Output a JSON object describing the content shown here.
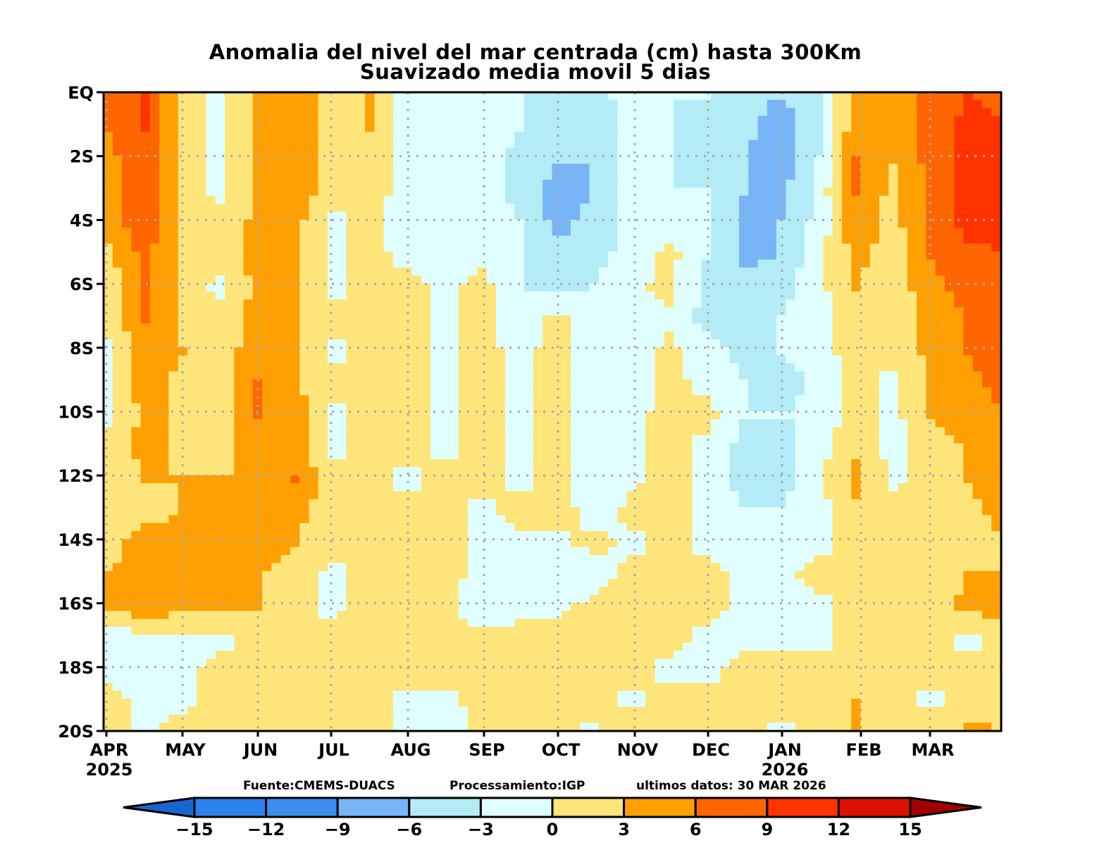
{
  "chart_data": {
    "type": "heatmap",
    "title": "Anomalia del nivel del mar centrada (cm) hasta 300Km",
    "subtitle": "Suavizado media movil 5 dias",
    "xlabel": "",
    "ylabel": "",
    "x_ticks": [
      "APR",
      "MAY",
      "JUN",
      "JUL",
      "AUG",
      "SEP",
      "OCT",
      "NOV",
      "DEC",
      "JAN",
      "FEB",
      "MAR"
    ],
    "x_year_labels": [
      {
        "tick": "APR",
        "year": "2025"
      },
      {
        "tick": "JAN",
        "year": "2026"
      }
    ],
    "y_ticks": [
      "EQ",
      "2S",
      "4S",
      "6S",
      "8S",
      "10S",
      "12S",
      "14S",
      "16S",
      "18S",
      "20S"
    ],
    "y_range": [
      0,
      -20
    ],
    "grid": true,
    "colorbar": {
      "levels": [
        -15,
        -12,
        -9,
        -6,
        -3,
        0,
        3,
        6,
        9,
        12,
        15
      ],
      "level_labels": [
        "-15",
        "-12",
        "-9",
        "-6",
        "-3",
        "0",
        "3",
        "6",
        "9",
        "12",
        "15"
      ],
      "colors": [
        "#1a66d1",
        "#2b82ea",
        "#3a8eed",
        "#77b5f6",
        "#b3ecf7",
        "#e0ffff",
        "#ffe57a",
        "#ffa000",
        "#ff6600",
        "#ff3300",
        "#dd1100",
        "#a00000"
      ],
      "placement": "bottom"
    },
    "lat_rows": [
      0,
      -1,
      -2,
      -3,
      -4,
      -5,
      -6,
      -7,
      -8,
      -9,
      -10,
      -11,
      -12,
      -13,
      -14,
      -15,
      -16,
      -17,
      -18,
      -19,
      -20
    ],
    "time_cols": [
      "Apr-1",
      "Apr-15",
      "May-1",
      "May-15",
      "Jun-1",
      "Jun-15",
      "Jul-1",
      "Jul-15",
      "Aug-1",
      "Aug-15",
      "Sep-1",
      "Sep-15",
      "Oct-1",
      "Oct-15",
      "Nov-1",
      "Nov-15",
      "Dec-1",
      "Dec-15",
      "Jan-1",
      "Jan-15",
      "Feb-1",
      "Feb-15",
      "Mar-1",
      "Mar-15",
      "Mar-30"
    ],
    "values": [
      [
        7,
        9,
        2,
        -1,
        4,
        5,
        1,
        3,
        -2,
        -2,
        -1,
        -3,
        -4,
        -4,
        -2,
        -3,
        -3,
        -5,
        -6,
        -4,
        4,
        3,
        7,
        9,
        8
      ],
      [
        6,
        9,
        2,
        -1,
        4,
        5,
        1,
        3,
        -2,
        -2,
        -1,
        -3,
        -5,
        -5,
        -2,
        -3,
        -4,
        -5,
        -8,
        -4,
        5,
        4,
        7,
        10,
        9
      ],
      [
        5,
        8,
        2,
        -1,
        4,
        5,
        1,
        2,
        -2,
        -3,
        -1,
        -4,
        -6,
        -6,
        -2,
        -3,
        -4,
        -6,
        -8,
        -3,
        6,
        3,
        7,
        10,
        10
      ],
      [
        4,
        8,
        2,
        -1,
        3,
        5,
        1,
        2,
        -2,
        -3,
        -1,
        -4,
        -7,
        -6,
        -2,
        -3,
        -3,
        -6,
        -7,
        -2,
        6,
        2,
        7,
        10,
        10
      ],
      [
        4,
        8,
        2,
        1,
        4,
        4,
        -1,
        1,
        -2,
        -3,
        -1,
        -3,
        -7,
        -5,
        -2,
        -2,
        -3,
        -7,
        -6,
        -2,
        5,
        2,
        6,
        10,
        10
      ],
      [
        2,
        7,
        2,
        1,
        4,
        4,
        -1,
        1,
        -1,
        -2,
        -1,
        -3,
        -5,
        -4,
        -2,
        1,
        -3,
        -7,
        -6,
        -1,
        4,
        1,
        6,
        8,
        9
      ],
      [
        1,
        6,
        2,
        -1,
        4,
        4,
        -1,
        1,
        1,
        -1,
        1,
        -3,
        -4,
        -3,
        -1,
        1,
        -4,
        -5,
        -4,
        -1,
        3,
        1,
        5,
        7,
        9
      ],
      [
        1,
        6,
        2,
        1,
        4,
        3,
        1,
        1,
        1,
        -1,
        1,
        -2,
        1,
        -3,
        -2,
        -1,
        -4,
        -4,
        -3,
        -1,
        2,
        1,
        4,
        6,
        8
      ],
      [
        -1,
        5,
        3,
        1,
        5,
        3,
        -1,
        1,
        1,
        -1,
        1,
        -1,
        1,
        -3,
        -2,
        1,
        -2,
        -4,
        -3,
        -1,
        1,
        1,
        4,
        6,
        8
      ],
      [
        -1,
        5,
        2,
        1,
        6,
        3,
        1,
        1,
        1,
        -1,
        1,
        -1,
        1,
        -3,
        -2,
        1,
        -1,
        -3,
        -5,
        -2,
        1,
        -1,
        3,
        5,
        7
      ],
      [
        -1,
        4,
        2,
        1,
        6,
        5,
        -1,
        1,
        1,
        -1,
        1,
        -1,
        1,
        -3,
        -1,
        1,
        1,
        -3,
        -3,
        -2,
        1,
        -1,
        3,
        4,
        6
      ],
      [
        1,
        4,
        2,
        1,
        5,
        5,
        -1,
        1,
        1,
        -1,
        1,
        -1,
        1,
        -2,
        -1,
        1,
        -1,
        -4,
        -5,
        -1,
        2,
        -1,
        2,
        3,
        5
      ],
      [
        1,
        3,
        3,
        3,
        4,
        6,
        1,
        1,
        -1,
        1,
        1,
        -1,
        1,
        -3,
        -1,
        2,
        -1,
        -4,
        -4,
        -1,
        4,
        -1,
        2,
        3,
        5
      ],
      [
        1,
        2,
        3,
        4,
        4,
        4,
        1,
        1,
        1,
        1,
        -1,
        1,
        2,
        -2,
        1,
        2,
        -1,
        -3,
        -3,
        -1,
        2,
        1,
        1,
        2,
        4
      ],
      [
        2,
        4,
        4,
        4,
        4,
        3,
        1,
        1,
        1,
        1,
        -1,
        -1,
        -1,
        1,
        -1,
        1,
        -1,
        -2,
        -3,
        -1,
        1,
        1,
        2,
        2,
        3
      ],
      [
        3,
        4,
        4,
        4,
        3,
        2,
        -1,
        1,
        1,
        1,
        -1,
        -2,
        -2,
        -2,
        1,
        2,
        1,
        -1,
        -1,
        1,
        1,
        1,
        1,
        3,
        3
      ],
      [
        3,
        5,
        4,
        4,
        3,
        1,
        -1,
        2,
        1,
        1,
        -2,
        -2,
        -1,
        1,
        2,
        2,
        1,
        -1,
        -1,
        -1,
        1,
        1,
        1,
        4,
        4
      ],
      [
        -2,
        -1,
        -1,
        -1,
        1,
        1,
        1,
        2,
        1,
        1,
        1,
        2,
        2,
        2,
        1,
        1,
        -1,
        -1,
        -1,
        -1,
        1,
        1,
        1,
        -1,
        1
      ],
      [
        -1,
        -1,
        -1,
        1,
        1,
        1,
        1,
        1,
        1,
        1,
        1,
        1,
        1,
        1,
        1,
        -1,
        -1,
        1,
        1,
        1,
        2,
        1,
        1,
        1,
        1
      ],
      [
        1,
        -1,
        -1,
        2,
        1,
        1,
        1,
        1,
        -1,
        -1,
        1,
        1,
        1,
        1,
        -1,
        2,
        1,
        1,
        1,
        1,
        3,
        1,
        -1,
        1,
        2
      ],
      [
        1,
        -1,
        2,
        2,
        1,
        2,
        1,
        3,
        -1,
        -2,
        1,
        1,
        1,
        -1,
        3,
        1,
        1,
        1,
        -1,
        1,
        3,
        1,
        3,
        4,
        3
      ]
    ]
  },
  "credits": {
    "source": "Fuente:CMEMS-DUACS",
    "processing": "Processamiento:IGP",
    "last_data": "ultimos datos: 30 MAR 2026"
  }
}
